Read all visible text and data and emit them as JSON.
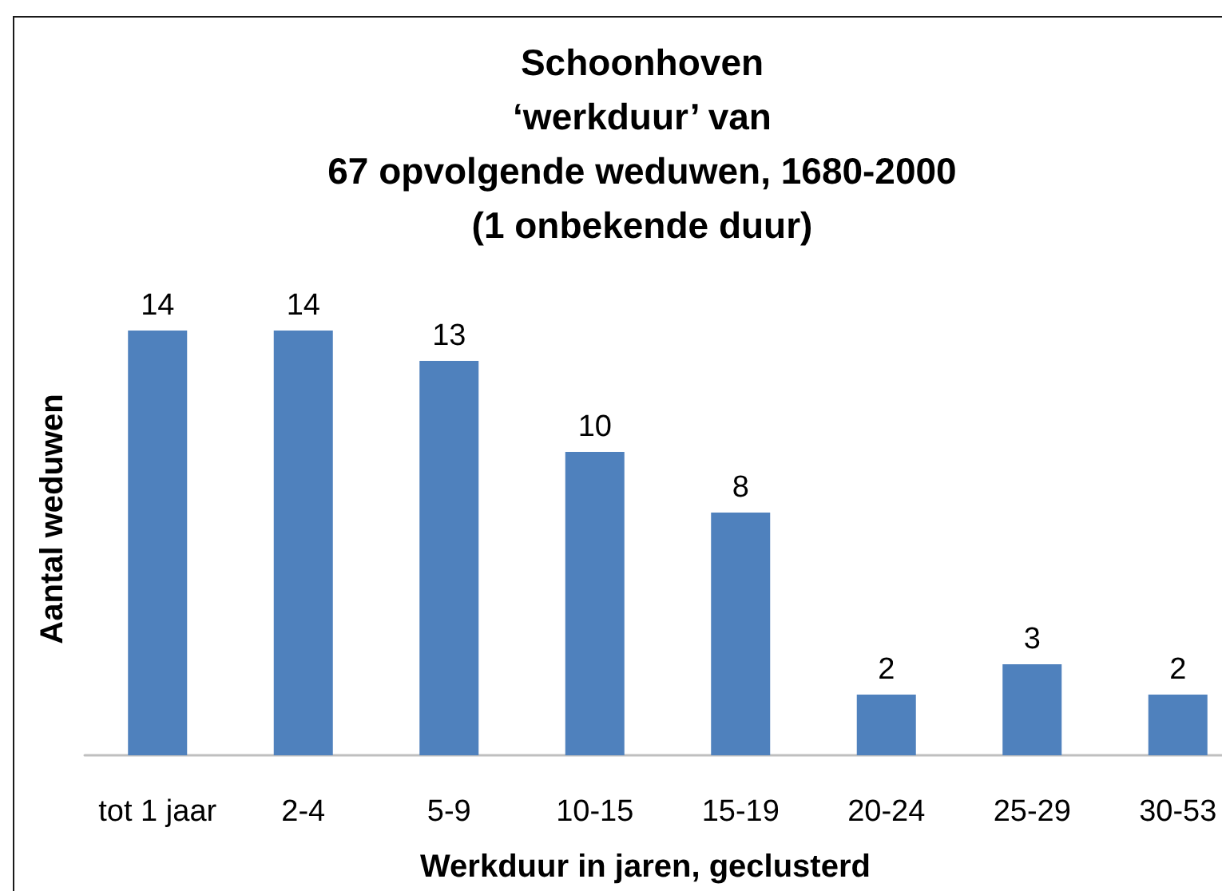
{
  "chart_data": {
    "type": "bar",
    "title": "Schoonhoven\n‘werkduur’ van\n67 opvolgende weduwen, 1680-2000\n(1 onbekende duur)",
    "xlabel": "Werkduur in jaren, geclusterd",
    "ylabel": "Aantal weduwen",
    "categories": [
      "tot 1 jaar",
      "2-4",
      "5-9",
      "10-15",
      "15-19",
      "20-24",
      "25-29",
      "30-53"
    ],
    "values": [
      14,
      14,
      13,
      10,
      8,
      2,
      3,
      2
    ],
    "color": "#4f81bd",
    "data_labels": true,
    "tick_labels": "x"
  }
}
